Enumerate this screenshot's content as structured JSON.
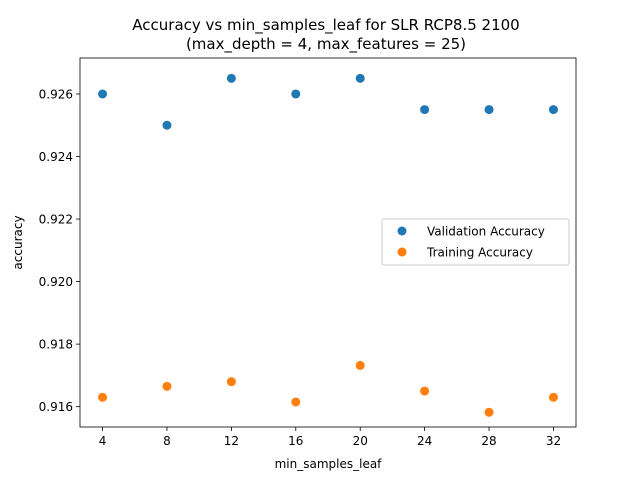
{
  "chart_data": {
    "type": "scatter",
    "title": "Accuracy vs min_samples_leaf for SLR RCP8.5 2100",
    "subtitle": "(max_depth = 4, max_features = 25)",
    "xlabel": "min_samples_leaf",
    "ylabel": "accuracy",
    "x": [
      4,
      8,
      12,
      16,
      20,
      24,
      28,
      32
    ],
    "xticks": [
      "4",
      "8",
      "12",
      "16",
      "20",
      "24",
      "28",
      "32"
    ],
    "yticks": [
      "0.916",
      "0.918",
      "0.920",
      "0.922",
      "0.924",
      "0.926"
    ],
    "xlim": [
      2.6,
      33.4
    ],
    "ylim": [
      0.91535,
      0.92715
    ],
    "grid": false,
    "legend_position": "center-right",
    "series": [
      {
        "name": "Validation Accuracy",
        "color": "#1f77b4",
        "values": [
          0.926,
          0.925,
          0.9265,
          0.926,
          0.9265,
          0.9255,
          0.9255,
          0.9255
        ]
      },
      {
        "name": "Training Accuracy",
        "color": "#ff7f0e",
        "values": [
          0.9163,
          0.91665,
          0.9168,
          0.91615,
          0.91732,
          0.9165,
          0.91582,
          0.9163
        ]
      }
    ]
  }
}
